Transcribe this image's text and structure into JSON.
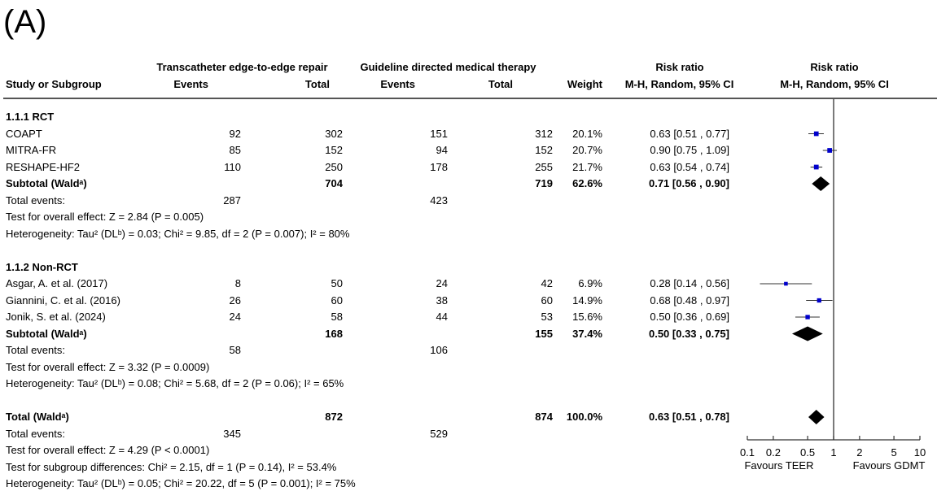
{
  "panel_label": "(A)",
  "header": {
    "group1": "Transcatheter edge-to-edge repair",
    "group2": "Guideline directed medical therapy",
    "rr_label1": "Risk ratio",
    "rr_label2": "Risk ratio",
    "study": "Study or Subgroup",
    "events1": "Events",
    "total1": "Total",
    "events2": "Events",
    "total2": "Total",
    "weight": "Weight",
    "method1": "M-H, Random, 95% CI",
    "method2": "M-H, Random, 95% CI"
  },
  "rows": [
    {
      "kind": "heading",
      "label": "1.1.1 RCT"
    },
    {
      "kind": "study",
      "label": "COAPT",
      "e1": "92",
      "t1": "302",
      "e2": "151",
      "t2": "312",
      "weight": "20.1%",
      "ci": "0.63 [0.51 , 0.77]"
    },
    {
      "kind": "study",
      "label": "MITRA-FR",
      "e1": "85",
      "t1": "152",
      "e2": "94",
      "t2": "152",
      "weight": "20.7%",
      "ci": "0.90 [0.75 , 1.09]"
    },
    {
      "kind": "study",
      "label": "RESHAPE-HF2",
      "e1": "110",
      "t1": "250",
      "e2": "178",
      "t2": "255",
      "weight": "21.7%",
      "ci": "0.63 [0.54 , 0.74]"
    },
    {
      "kind": "subtotal",
      "label": "Subtotal (Waldᵃ)",
      "t1": "704",
      "t2": "719",
      "weight": "62.6%",
      "ci": "0.71 [0.56 , 0.90]"
    },
    {
      "kind": "events",
      "label": "Total events:",
      "e1": "287",
      "e2": "423"
    },
    {
      "kind": "note",
      "label": "Test for overall effect: Z = 2.84 (P = 0.005)"
    },
    {
      "kind": "note",
      "label": "Heterogeneity: Tau² (DLᵇ) = 0.03; Chi² = 9.85, df = 2 (P = 0.007); I² = 80%"
    },
    {
      "kind": "blank"
    },
    {
      "kind": "heading",
      "label": "1.1.2 Non-RCT"
    },
    {
      "kind": "study",
      "label": "Asgar, A. et al. (2017)",
      "e1": "8",
      "t1": "50",
      "e2": "24",
      "t2": "42",
      "weight": "6.9%",
      "ci": "0.28 [0.14 , 0.56]"
    },
    {
      "kind": "study",
      "label": "Giannini, C. et al. (2016)",
      "e1": "26",
      "t1": "60",
      "e2": "38",
      "t2": "60",
      "weight": "14.9%",
      "ci": "0.68 [0.48 , 0.97]"
    },
    {
      "kind": "study",
      "label": "Jonik, S. et al. (2024)",
      "e1": "24",
      "t1": "58",
      "e2": "44",
      "t2": "53",
      "weight": "15.6%",
      "ci": "0.50 [0.36 , 0.69]"
    },
    {
      "kind": "subtotal",
      "label": "Subtotal (Waldᵃ)",
      "t1": "168",
      "t2": "155",
      "weight": "37.4%",
      "ci": "0.50 [0.33 , 0.75]"
    },
    {
      "kind": "events",
      "label": "Total events:",
      "e1": "58",
      "e2": "106"
    },
    {
      "kind": "note",
      "label": "Test for overall effect: Z = 3.32 (P = 0.0009)"
    },
    {
      "kind": "note",
      "label": "Heterogeneity: Tau² (DLᵇ) = 0.08; Chi² = 5.68, df = 2 (P = 0.06); I² = 65%"
    },
    {
      "kind": "blank"
    },
    {
      "kind": "subtotal",
      "label": "Total (Waldᵃ)",
      "t1": "872",
      "t2": "874",
      "weight": "100.0%",
      "ci": "0.63 [0.51 , 0.78]"
    },
    {
      "kind": "events",
      "label": "Total events:",
      "e1": "345",
      "e2": "529"
    },
    {
      "kind": "note",
      "label": "Test for overall effect: Z = 4.29 (P < 0.0001)"
    },
    {
      "kind": "note",
      "label": "Test for subgroup differences: Chi² = 2.15, df = 1 (P = 0.14), I² = 53.4%"
    },
    {
      "kind": "note",
      "label": "Heterogeneity: Tau² (DLᵇ) = 0.05; Chi² = 20.22, df = 5 (P = 0.001); I² = 75%"
    }
  ],
  "chart_data": {
    "type": "scatter",
    "scale": "log",
    "xlim": [
      0.1,
      10
    ],
    "ticks": [
      0.1,
      0.2,
      0.5,
      1,
      2,
      5,
      10
    ],
    "tick_labels": [
      "0.1",
      "0.2",
      "0.5",
      "1",
      "2",
      "5",
      "10"
    ],
    "favours_left": "Favours TEER",
    "favours_right": "Favours GDMT",
    "marker_color": "#0000cc",
    "diamond_color": "#000000",
    "studies": [
      {
        "row": 1,
        "rr": 0.63,
        "lo": 0.51,
        "hi": 0.77,
        "weight": 20.1
      },
      {
        "row": 2,
        "rr": 0.9,
        "lo": 0.75,
        "hi": 1.09,
        "weight": 20.7
      },
      {
        "row": 3,
        "rr": 0.63,
        "lo": 0.54,
        "hi": 0.74,
        "weight": 21.7
      },
      {
        "row": 10,
        "rr": 0.28,
        "lo": 0.14,
        "hi": 0.56,
        "weight": 6.9
      },
      {
        "row": 11,
        "rr": 0.68,
        "lo": 0.48,
        "hi": 0.97,
        "weight": 14.9
      },
      {
        "row": 12,
        "rr": 0.5,
        "lo": 0.36,
        "hi": 0.69,
        "weight": 15.6
      }
    ],
    "diamonds": [
      {
        "row": 4,
        "rr": 0.71,
        "lo": 0.56,
        "hi": 0.9
      },
      {
        "row": 13,
        "rr": 0.5,
        "lo": 0.33,
        "hi": 0.75
      },
      {
        "row": 18,
        "rr": 0.63,
        "lo": 0.51,
        "hi": 0.78
      }
    ]
  }
}
